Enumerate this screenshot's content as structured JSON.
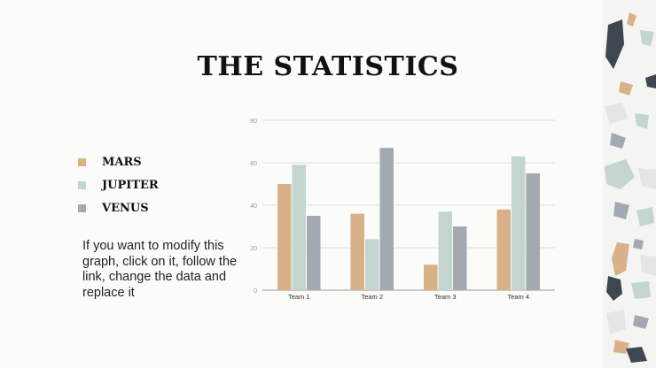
{
  "slide": {
    "title": "THE STATISTICS",
    "note": "If you want to modify this graph, click on it, follow the link, change the data and replace it"
  },
  "legend": [
    {
      "label": "MARS",
      "color": "#d9b188"
    },
    {
      "label": "JUPITER",
      "color": "#c4d5cf"
    },
    {
      "label": "VENUS",
      "color": "#a2a9b0"
    }
  ],
  "chart_data": {
    "type": "bar",
    "categories": [
      "Team 1",
      "Team 2",
      "Team 3",
      "Team 4"
    ],
    "series": [
      {
        "name": "MARS",
        "values": [
          50,
          36,
          12,
          38
        ],
        "color": "#d9b188"
      },
      {
        "name": "JUPITER",
        "values": [
          59,
          24,
          37,
          63
        ],
        "color": "#c4d5cf"
      },
      {
        "name": "VENUS",
        "values": [
          35,
          67,
          30,
          55
        ],
        "color": "#a2a9b0"
      }
    ],
    "ylim": [
      0,
      80
    ],
    "yticks": [
      0,
      20,
      40,
      60,
      80
    ],
    "grid": true
  }
}
